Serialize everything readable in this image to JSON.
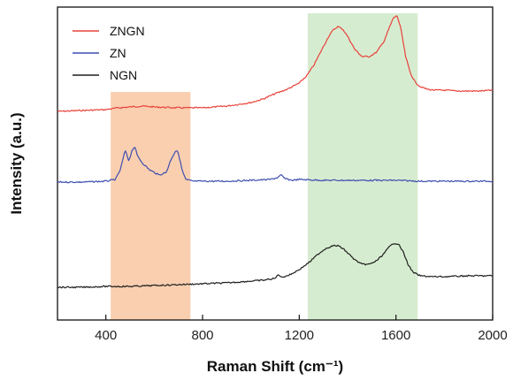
{
  "chart_data": {
    "type": "line",
    "title": "",
    "xlabel": "Raman Shift (cm⁻¹)",
    "ylabel": "Intensity (a.u.)",
    "xlim": [
      200,
      2000
    ],
    "x_ticks": [
      400,
      800,
      1200,
      1600,
      2000
    ],
    "x_tick_labels": [
      "400",
      "800",
      "1200",
      "1600",
      "2000"
    ],
    "y_ticks_shown": false,
    "grid": false,
    "legend_position": "top-left",
    "highlight_regions": [
      {
        "x_range": [
          420,
          750
        ],
        "color": "#f9cfb0"
      },
      {
        "x_range": [
          1235,
          1690
        ],
        "color": "#d6ecd0"
      }
    ],
    "series": [
      {
        "name": "ZNGN",
        "color": "#e8413a",
        "baseline": 126,
        "x": [
          200,
          300,
          400,
          450,
          500,
          550,
          600,
          700,
          800,
          900,
          1000,
          1050,
          1100,
          1150,
          1200,
          1230,
          1260,
          1290,
          1320,
          1340,
          1360,
          1380,
          1400,
          1430,
          1460,
          1490,
          1520,
          1550,
          1570,
          1590,
          1605,
          1620,
          1640,
          1660,
          1680,
          1700,
          1730,
          1760,
          1800,
          1850,
          1900,
          1950,
          2000
        ],
        "values": [
          0,
          1,
          2,
          4,
          5,
          6,
          5,
          4,
          4,
          6,
          10,
          14,
          20,
          25,
          32,
          40,
          52,
          68,
          84,
          92,
          96,
          93,
          85,
          70,
          62,
          62,
          67,
          79,
          93,
          106,
          108,
          94,
          62,
          43,
          33,
          28,
          25,
          24,
          24,
          23,
          23,
          23,
          24
        ]
      },
      {
        "name": "ZN",
        "color": "#3d4db0",
        "baseline": 206,
        "x": [
          200,
          300,
          400,
          440,
          460,
          480,
          495,
          510,
          520,
          530,
          550,
          580,
          620,
          650,
          670,
          690,
          700,
          715,
          730,
          760,
          800,
          900,
          1000,
          1080,
          1110,
          1125,
          1140,
          1170,
          1200,
          1300,
          1400,
          1500,
          1600,
          1700,
          1800,
          1900,
          2000
        ],
        "values": [
          0,
          0,
          1,
          3,
          14,
          36,
          24,
          37,
          40,
          30,
          22,
          14,
          8,
          11,
          26,
          36,
          33,
          14,
          3,
          1,
          1,
          1,
          2,
          3,
          5,
          8,
          4,
          2,
          3,
          2,
          2,
          2,
          2,
          1,
          1,
          1,
          1
        ]
      },
      {
        "name": "NGN",
        "color": "#1e1e1e",
        "baseline": 325,
        "x": [
          200,
          300,
          400,
          500,
          600,
          700,
          800,
          900,
          1000,
          1050,
          1100,
          1115,
          1125,
          1135,
          1160,
          1200,
          1240,
          1280,
          1310,
          1340,
          1360,
          1380,
          1400,
          1430,
          1460,
          1490,
          1520,
          1550,
          1570,
          1590,
          1610,
          1630,
          1650,
          1670,
          1700,
          1750,
          1800,
          1900,
          2000
        ],
        "values": [
          0,
          0,
          1,
          1,
          2,
          3,
          4,
          5,
          7,
          8,
          10,
          15,
          11,
          12,
          14,
          20,
          28,
          38,
          44,
          47,
          47,
          44,
          39,
          31,
          26,
          26,
          30,
          38,
          45,
          50,
          49,
          40,
          26,
          17,
          13,
          12,
          12,
          13,
          13
        ]
      }
    ]
  }
}
